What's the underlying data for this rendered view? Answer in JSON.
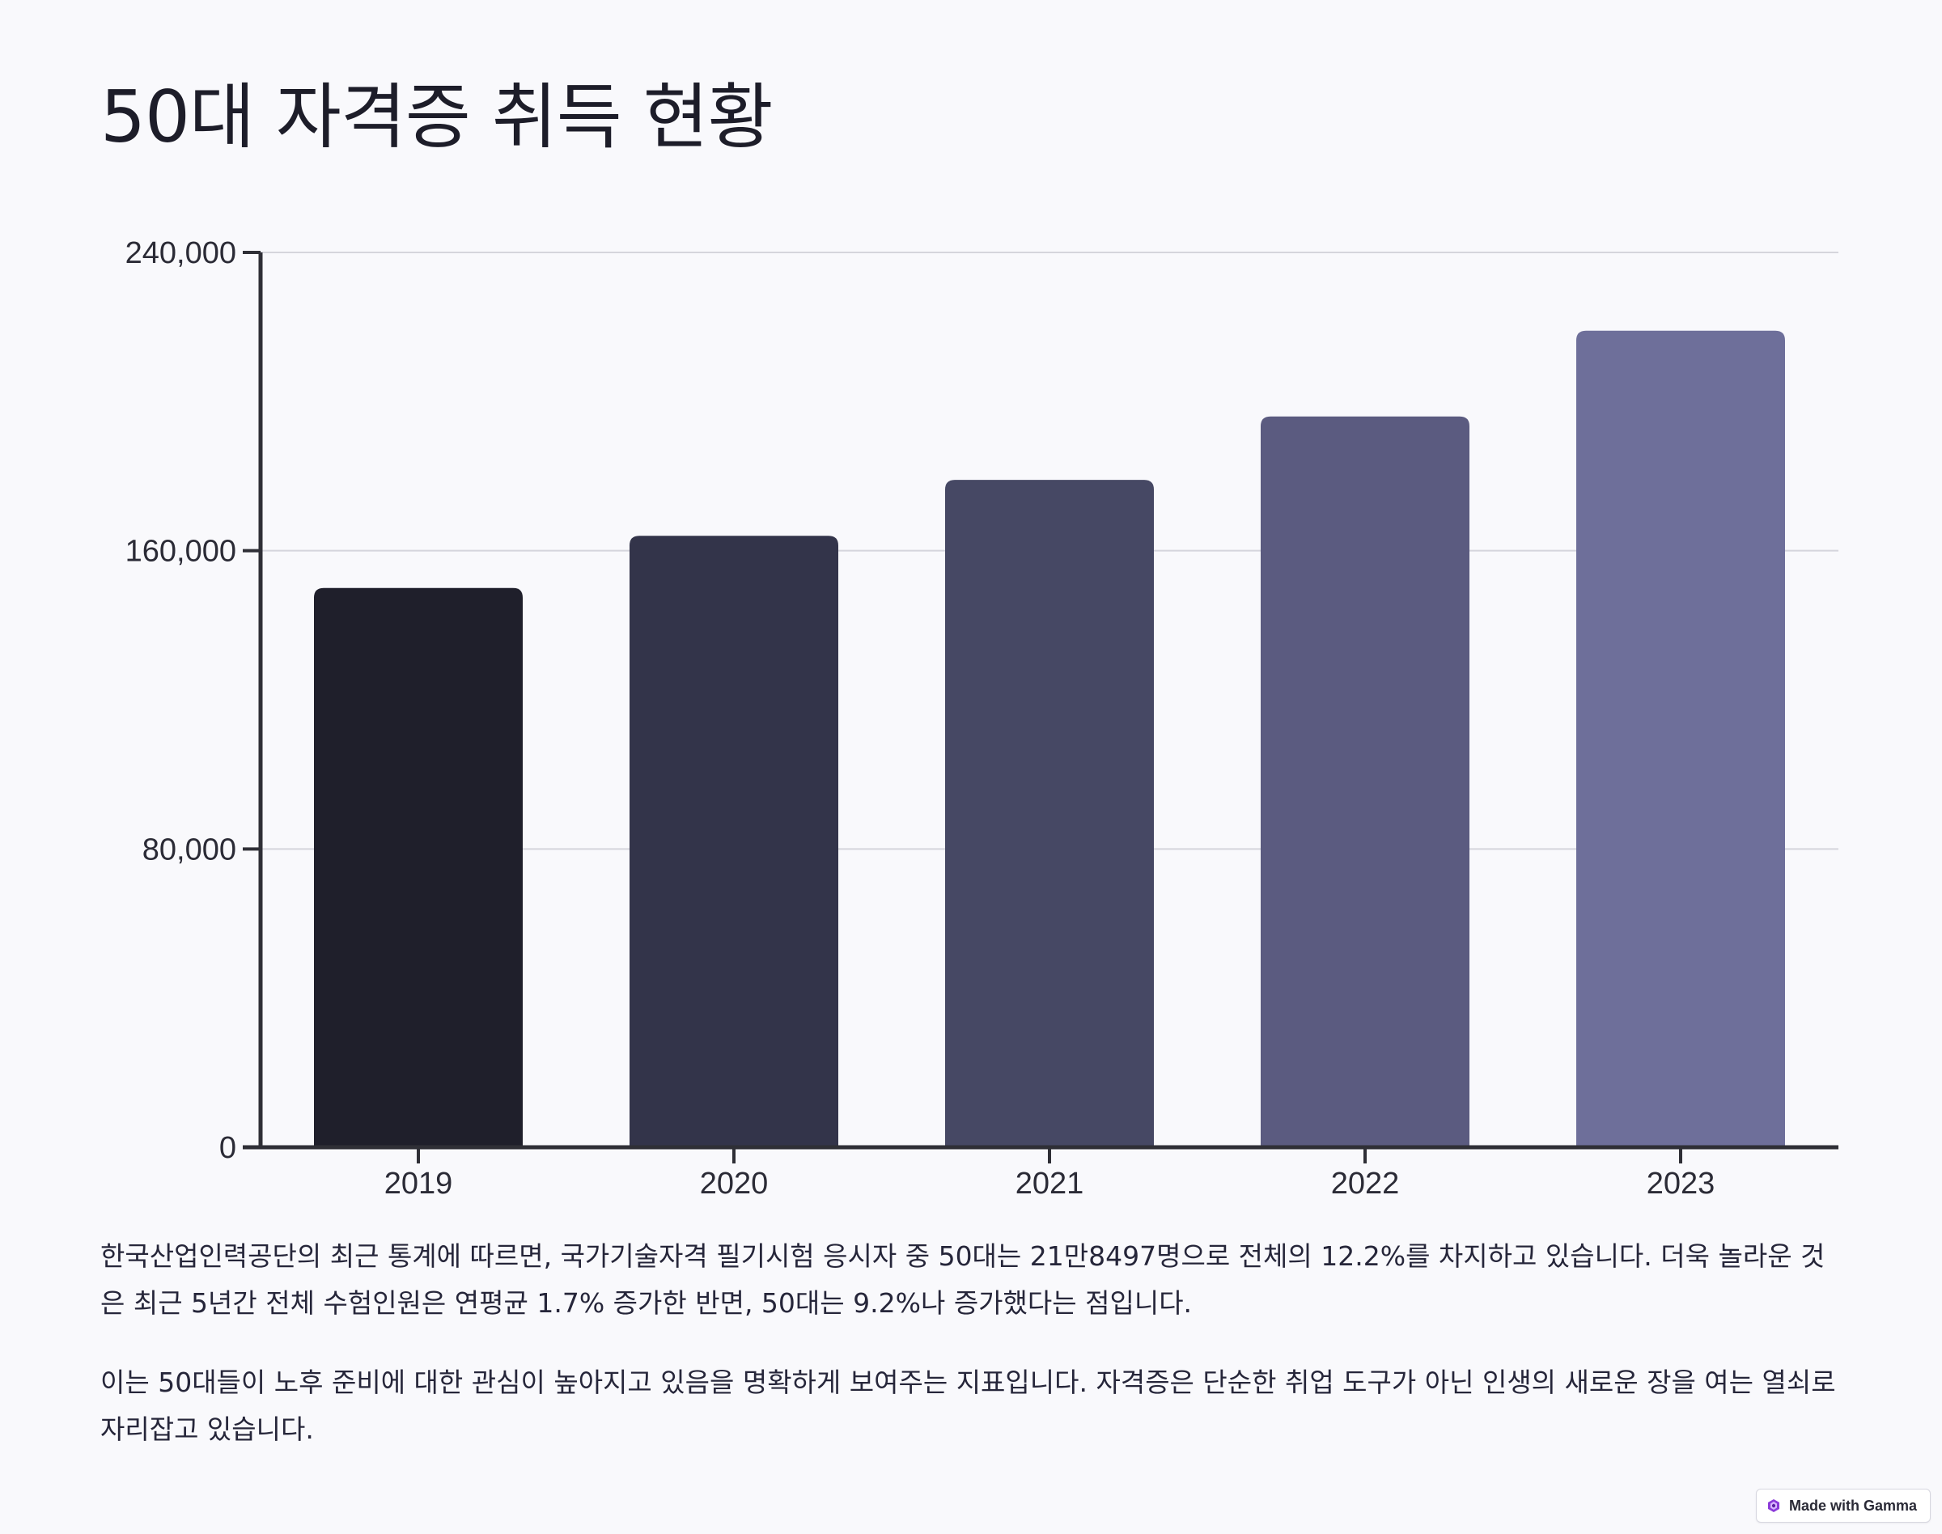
{
  "title": "50대 자격증 취득 현황",
  "chart_data": {
    "type": "bar",
    "categories": [
      "2019",
      "2020",
      "2021",
      "2022",
      "2023"
    ],
    "values": [
      150000,
      164000,
      179000,
      196000,
      219000
    ],
    "bar_colors": [
      "#1f1f2b",
      "#33344a",
      "#464864",
      "#5b5b80",
      "#6e6f9a"
    ],
    "ylim": [
      0,
      240000
    ],
    "yticks": [
      0,
      80000,
      160000,
      240000
    ],
    "ytick_labels": [
      "0",
      "80,000",
      "160,000",
      "240,000"
    ],
    "grid": true,
    "legend": "none",
    "xlabel": "",
    "ylabel": ""
  },
  "paragraphs": [
    "한국산업인력공단의 최근 통계에 따르면, 국가기술자격 필기시험 응시자 중 50대는 21만8497명으로 전체의 12.2%를 차지하고 있습니다. 더욱 놀라운 것은 최근 5년간 전체 수험인원은 연평균 1.7% 증가한 반면, 50대는 9.2%나 증가했다는 점입니다.",
    "이는 50대들이 노후 준비에 대한 관심이 높아지고 있음을 명확하게 보여주는 지표입니다. 자격증은 단순한 취업 도구가 아닌 인생의 새로운 장을 여는 열쇠로 자리잡고 있습니다."
  ],
  "badge": {
    "label": "Made with Gamma",
    "icon": "gamma-logo-icon"
  }
}
